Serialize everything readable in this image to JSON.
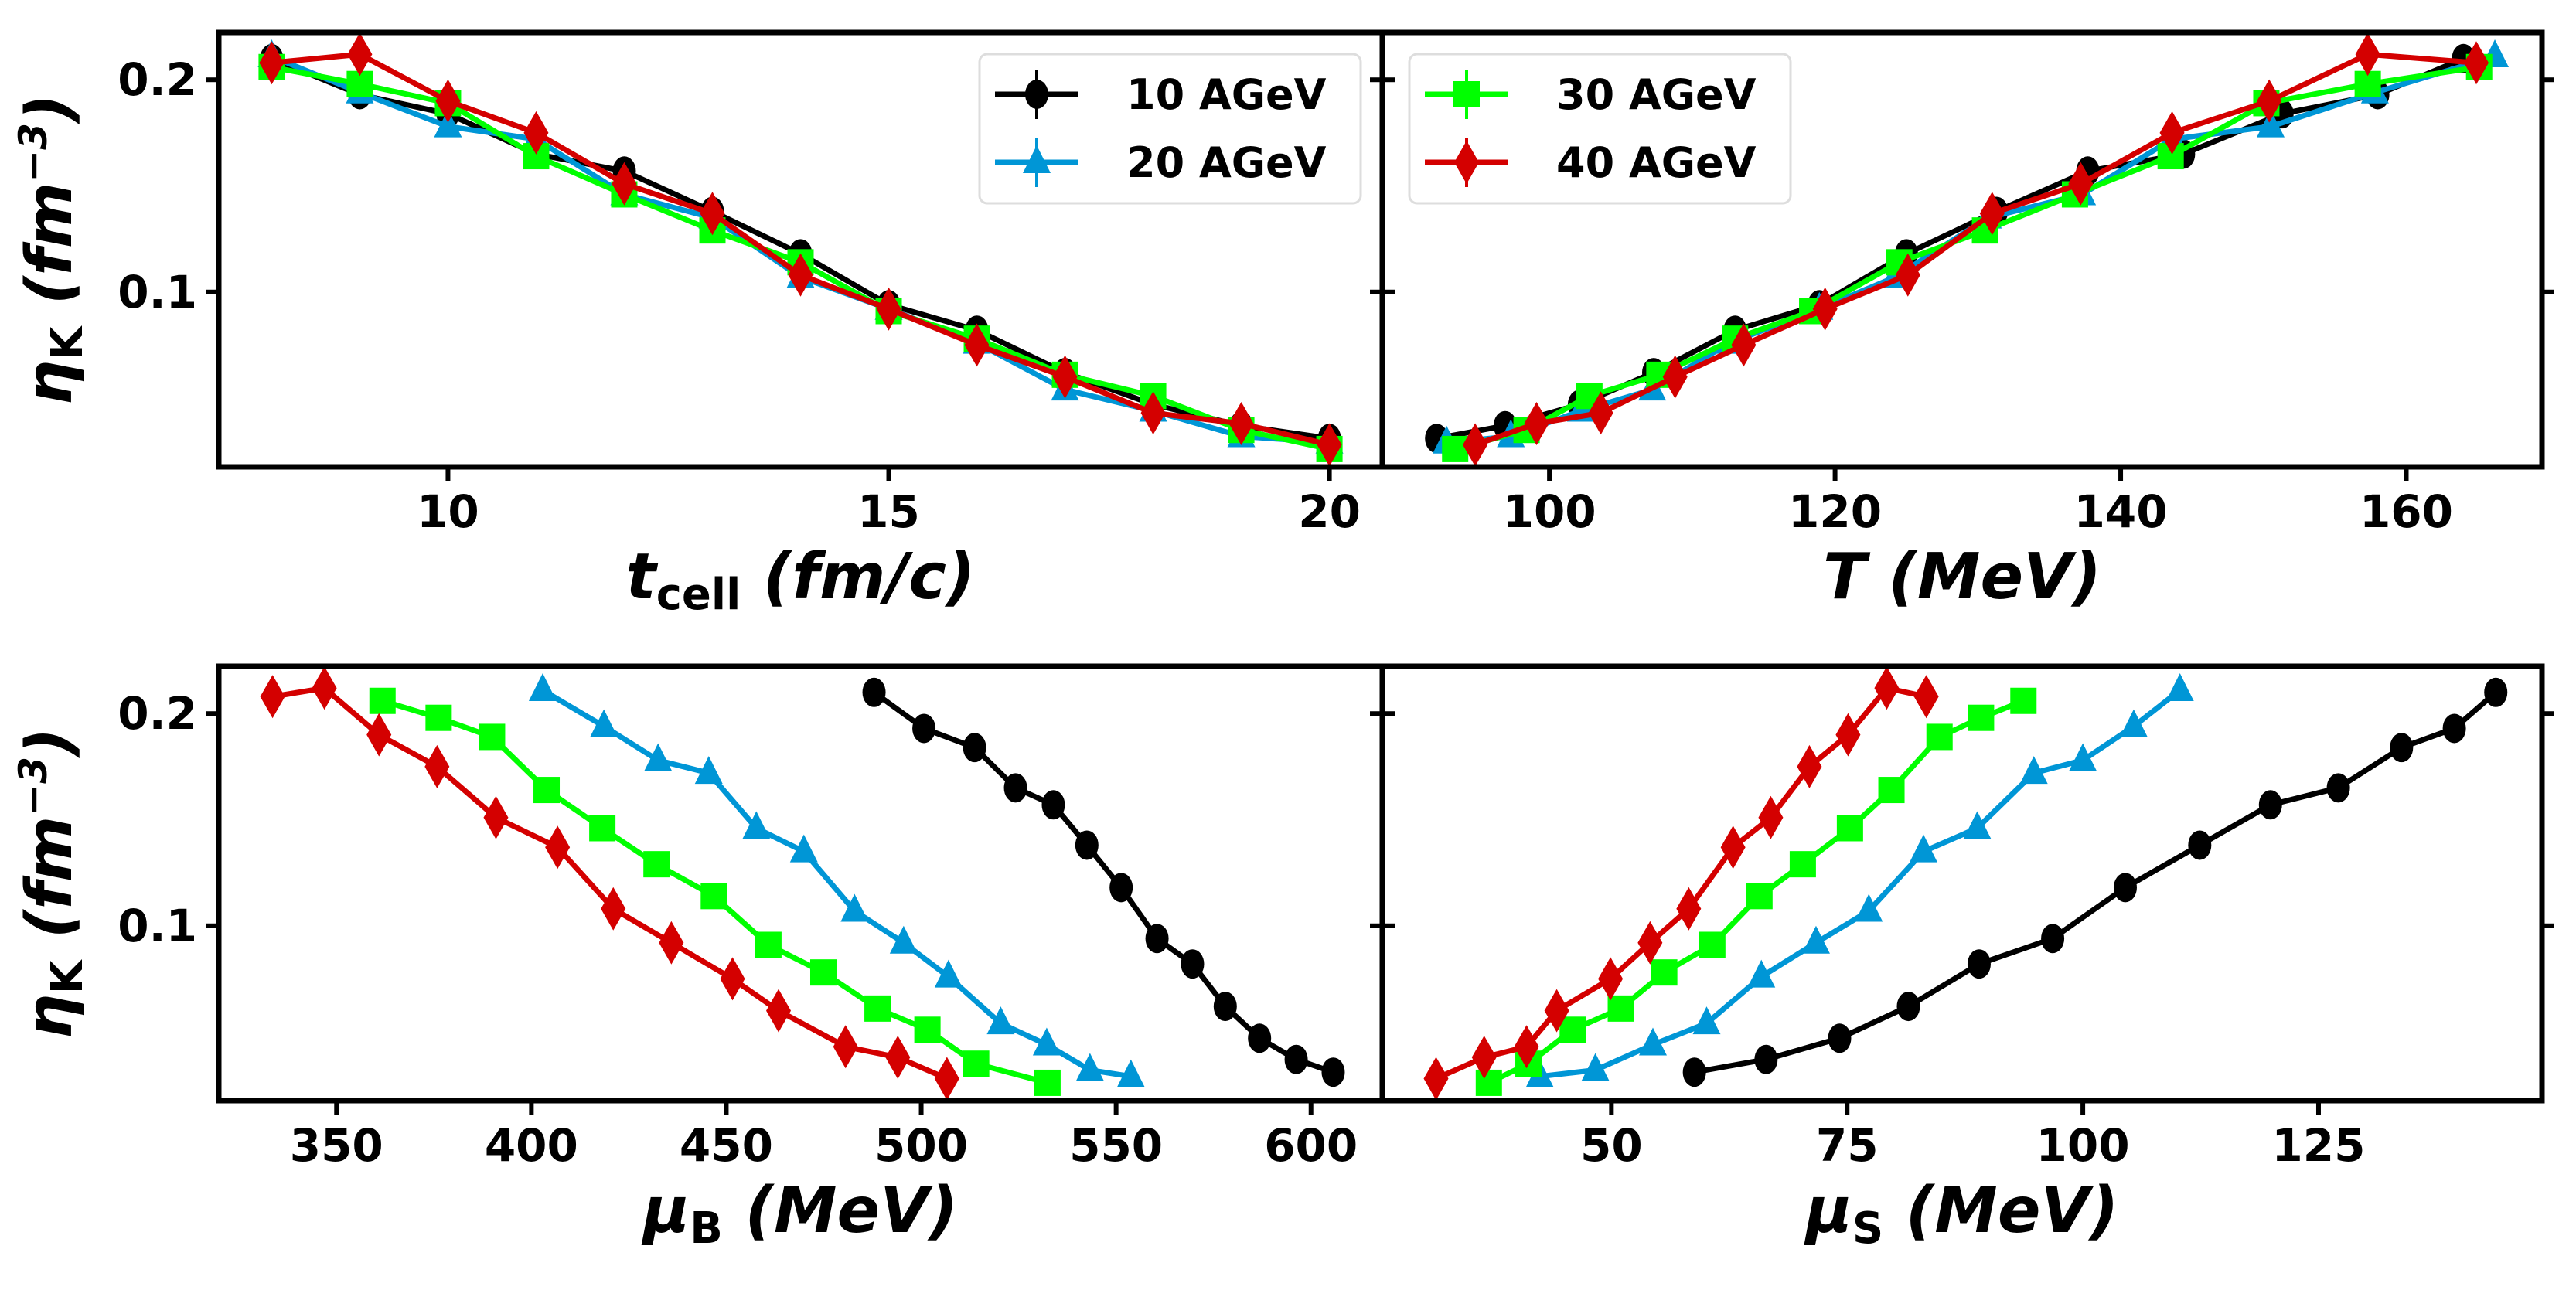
{
  "series_style": [
    {
      "name": "10 AGeV",
      "color": "#000000",
      "marker": "circle"
    },
    {
      "name": "20 AGeV",
      "color": "#0096d6",
      "marker": "triangle"
    },
    {
      "name": "30 AGeV",
      "color": "#00ff00",
      "marker": "square"
    },
    {
      "name": "40 AGeV",
      "color": "#d40000",
      "marker": "thin_diamond"
    }
  ],
  "chart_data": [
    {
      "type": "line",
      "panel": "top-left",
      "xlabel": {
        "main": "t",
        "sub": "cell",
        "rest": " (fm/c)"
      },
      "ylabel": {
        "main": "η",
        "sub": "K",
        "rest": " (fm",
        "sup": "−3",
        "end": ")"
      },
      "xlim": [
        7.4,
        20.6
      ],
      "ylim": [
        0.0176,
        0.2223
      ],
      "xticks": [
        10,
        15,
        20
      ],
      "yticks": [
        0.1,
        0.2
      ],
      "legend": {
        "placement": "top-right",
        "entries": [
          0,
          1
        ]
      },
      "series": [
        {
          "name": "10 AGeV",
          "x": [
            8,
            9,
            10,
            11,
            12,
            13,
            14,
            15,
            16,
            17,
            18,
            19,
            20
          ],
          "y": [
            0.21,
            0.193,
            0.184,
            0.165,
            0.157,
            0.138,
            0.118,
            0.094,
            0.082,
            0.062,
            0.047,
            0.037,
            0.031
          ]
        },
        {
          "name": "20 AGeV",
          "x": [
            8,
            9,
            10,
            11,
            12,
            13,
            14,
            15,
            16,
            17,
            18,
            19,
            20
          ],
          "y": [
            0.211,
            0.194,
            0.178,
            0.172,
            0.146,
            0.135,
            0.107,
            0.092,
            0.076,
            0.054,
            0.044,
            0.032,
            0.029
          ]
        },
        {
          "name": "30 AGeV",
          "x": [
            8,
            9,
            10,
            11,
            12,
            13,
            14,
            15,
            16,
            17,
            18,
            19,
            20
          ],
          "y": [
            0.206,
            0.198,
            0.189,
            0.164,
            0.146,
            0.129,
            0.114,
            0.091,
            0.078,
            0.061,
            0.051,
            0.035,
            0.026
          ]
        },
        {
          "name": "40 AGeV",
          "x": [
            8,
            9,
            10,
            11,
            12,
            13,
            14,
            15,
            16,
            17,
            18,
            19,
            20
          ],
          "y": [
            0.208,
            0.212,
            0.19,
            0.175,
            0.151,
            0.137,
            0.108,
            0.092,
            0.075,
            0.06,
            0.043,
            0.038,
            0.028
          ]
        }
      ]
    },
    {
      "type": "line",
      "panel": "top-right",
      "xlabel": {
        "main": "T",
        "sub": "",
        "rest": " (MeV)"
      },
      "ylabel": null,
      "xlim": [
        88.3,
        169.5
      ],
      "ylim": [
        0.0176,
        0.2223
      ],
      "xticks": [
        100,
        120,
        140,
        160
      ],
      "yticks": [],
      "legend": {
        "placement": "top-left",
        "entries": [
          2,
          3
        ]
      },
      "series": [
        {
          "name": "10 AGeV",
          "x": [
            164.0,
            158.0,
            151.3,
            144.4,
            137.7,
            131.3,
            125.0,
            118.9,
            113.0,
            107.3,
            102.1,
            96.9,
            92.1
          ],
          "y": [
            0.21,
            0.193,
            0.184,
            0.165,
            0.157,
            0.138,
            0.118,
            0.094,
            0.082,
            0.062,
            0.047,
            0.037,
            0.031
          ]
        },
        {
          "name": "20 AGeV",
          "x": [
            166.2,
            157.8,
            150.5,
            143.6,
            137.3,
            130.7,
            124.2,
            118.9,
            112.6,
            107.2,
            102.2,
            97.3,
            92.8
          ],
          "y": [
            0.211,
            0.194,
            0.178,
            0.172,
            0.146,
            0.135,
            0.107,
            0.092,
            0.076,
            0.054,
            0.044,
            0.032,
            0.029
          ]
        },
        {
          "name": "30 AGeV",
          "x": [
            165.1,
            157.3,
            150.2,
            143.5,
            136.8,
            130.5,
            124.5,
            118.4,
            113.0,
            107.7,
            102.8,
            98.4,
            93.4
          ],
          "y": [
            0.206,
            0.198,
            0.189,
            0.164,
            0.146,
            0.129,
            0.114,
            0.091,
            0.078,
            0.061,
            0.051,
            0.035,
            0.026
          ]
        },
        {
          "name": "40 AGeV",
          "x": [
            164.9,
            157.3,
            150.4,
            143.6,
            137.2,
            131.0,
            125.1,
            119.3,
            113.6,
            108.8,
            103.6,
            99.1,
            94.8
          ],
          "y": [
            0.208,
            0.212,
            0.19,
            0.175,
            0.151,
            0.137,
            0.108,
            0.092,
            0.075,
            0.06,
            0.043,
            0.038,
            0.028
          ]
        }
      ]
    },
    {
      "type": "line",
      "panel": "bottom-left",
      "xlabel": {
        "main": "μ",
        "sub": "B",
        "rest": " (MeV)"
      },
      "ylabel": {
        "main": "η",
        "sub": "K",
        "rest": " (fm",
        "sup": "−3",
        "end": ")"
      },
      "xlim": [
        319.8,
        618.3
      ],
      "ylim": [
        0.0176,
        0.2223
      ],
      "xticks": [
        350,
        400,
        450,
        500,
        550,
        600
      ],
      "yticks": [
        0.1,
        0.2
      ],
      "legend": null,
      "series": [
        {
          "name": "10 AGeV",
          "x": [
            487.9,
            500.7,
            513.7,
            524.2,
            533.9,
            542.5,
            551.3,
            560.5,
            569.6,
            578.0,
            586.8,
            596.2,
            605.7
          ],
          "y": [
            0.21,
            0.193,
            0.184,
            0.165,
            0.157,
            0.138,
            0.118,
            0.094,
            0.082,
            0.062,
            0.047,
            0.037,
            0.031
          ]
        },
        {
          "name": "20 AGeV",
          "x": [
            402.9,
            418.6,
            432.5,
            445.5,
            457.7,
            469.9,
            482.9,
            495.5,
            507.0,
            520.4,
            532.2,
            543.3,
            553.8
          ],
          "y": [
            0.211,
            0.194,
            0.178,
            0.172,
            0.146,
            0.135,
            0.107,
            0.092,
            0.076,
            0.054,
            0.044,
            0.032,
            0.029
          ]
        },
        {
          "name": "30 AGeV",
          "x": [
            361.8,
            376.2,
            389.9,
            403.9,
            418.2,
            432.1,
            446.8,
            460.8,
            474.9,
            488.8,
            501.6,
            514.1,
            532.4
          ],
          "y": [
            0.206,
            0.198,
            0.189,
            0.164,
            0.146,
            0.129,
            0.114,
            0.091,
            0.078,
            0.061,
            0.051,
            0.035,
            0.026
          ]
        },
        {
          "name": "40 AGeV",
          "x": [
            333.6,
            346.9,
            360.9,
            375.8,
            390.9,
            406.7,
            421.0,
            435.9,
            451.6,
            463.4,
            480.6,
            494.0,
            506.6
          ],
          "y": [
            0.208,
            0.212,
            0.19,
            0.175,
            0.151,
            0.137,
            0.108,
            0.092,
            0.075,
            0.06,
            0.043,
            0.038,
            0.028
          ]
        }
      ]
    },
    {
      "type": "line",
      "panel": "bottom-right",
      "xlabel": {
        "main": "μ",
        "sub": "S",
        "rest": " (MeV)"
      },
      "ylabel": null,
      "xlim": [
        25.7,
        148.7
      ],
      "ylim": [
        0.0176,
        0.2223
      ],
      "xticks": [
        50,
        75,
        100,
        125
      ],
      "yticks": [],
      "legend": null,
      "series": [
        {
          "name": "10 AGeV",
          "x": [
            143.8,
            139.4,
            133.8,
            127.1,
            119.9,
            112.4,
            104.5,
            96.8,
            89.0,
            81.5,
            74.2,
            66.4,
            58.8
          ],
          "y": [
            0.21,
            0.193,
            0.184,
            0.165,
            0.157,
            0.138,
            0.118,
            0.094,
            0.082,
            0.062,
            0.047,
            0.037,
            0.031
          ]
        },
        {
          "name": "20 AGeV",
          "x": [
            110.3,
            105.4,
            100.0,
            94.8,
            88.8,
            83.1,
            77.3,
            71.7,
            65.9,
            60.1,
            54.4,
            48.3,
            42.4
          ],
          "y": [
            0.211,
            0.194,
            0.178,
            0.172,
            0.146,
            0.135,
            0.107,
            0.092,
            0.076,
            0.054,
            0.044,
            0.032,
            0.029
          ]
        },
        {
          "name": "30 AGeV",
          "x": [
            93.7,
            89.2,
            84.8,
            79.7,
            75.3,
            70.3,
            65.7,
            60.7,
            55.6,
            51.0,
            45.9,
            41.2,
            37.0
          ],
          "y": [
            0.206,
            0.198,
            0.189,
            0.164,
            0.146,
            0.129,
            0.114,
            0.091,
            0.078,
            0.061,
            0.051,
            0.035,
            0.026
          ]
        },
        {
          "name": "40 AGeV",
          "x": [
            83.4,
            79.2,
            75.1,
            71.0,
            66.9,
            62.9,
            58.2,
            54.1,
            49.9,
            44.2,
            41.0,
            36.5,
            31.4
          ],
          "y": [
            0.208,
            0.212,
            0.19,
            0.175,
            0.151,
            0.137,
            0.108,
            0.092,
            0.075,
            0.06,
            0.043,
            0.038,
            0.028
          ]
        }
      ]
    }
  ]
}
